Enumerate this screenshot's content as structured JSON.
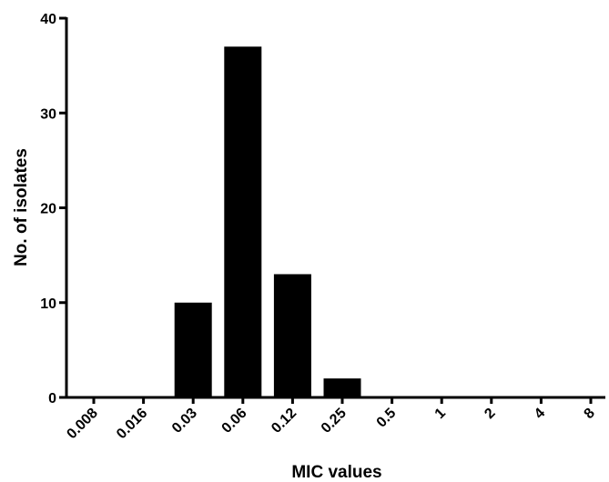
{
  "chart_data": {
    "type": "bar",
    "title": "",
    "xlabel": "MIC values",
    "ylabel": "No. of isolates",
    "categories": [
      "0.008",
      "0.016",
      "0.03",
      "0.06",
      "0.12",
      "0.25",
      "0.5",
      "1",
      "2",
      "4",
      "8"
    ],
    "values": [
      0,
      0,
      10,
      37,
      13,
      2,
      0,
      0,
      0,
      0,
      0
    ],
    "ylim": [
      0,
      40
    ],
    "yticks": [
      "0",
      "10",
      "20",
      "30",
      "40"
    ],
    "grid": false,
    "legend": "none",
    "bar_color": "#000000"
  }
}
